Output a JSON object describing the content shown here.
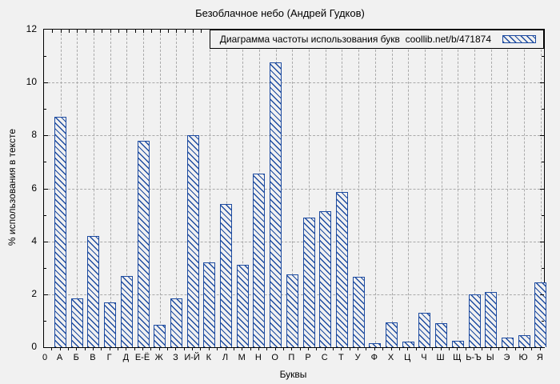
{
  "figure": {
    "background_color": "#f1f1f1",
    "frame_color": "#000000",
    "grid_color": "#aaaaaa",
    "bar_color": "#1d4ba0"
  },
  "chart_data": {
    "type": "bar",
    "title": "Безоблачное небо (Андрей Гудков)",
    "legend_label": "Диаграмма частоты использования букв  coollib.net/b/471874",
    "legend_position": "top-right",
    "xlabel": "Буквы",
    "ylabel": "% использования в тексте",
    "x_origin_label": "0",
    "ylim": [
      0,
      12
    ],
    "yticks": [
      0,
      2,
      4,
      6,
      8,
      10,
      12
    ],
    "grid": true,
    "hatch_style": "diagonal-backslash",
    "categories": [
      "А",
      "Б",
      "В",
      "Г",
      "Д",
      "Е-Ё",
      "Ж",
      "З",
      "И-Й",
      "К",
      "Л",
      "М",
      "Н",
      "О",
      "П",
      "Р",
      "С",
      "Т",
      "У",
      "Ф",
      "Х",
      "Ц",
      "Ч",
      "Ш",
      "Щ",
      "Ь-Ъ",
      "Ы",
      "Э",
      "Ю",
      "Я"
    ],
    "values": [
      8.7,
      1.85,
      4.2,
      1.7,
      2.7,
      7.8,
      0.85,
      1.85,
      8.0,
      3.2,
      5.4,
      3.1,
      6.55,
      10.75,
      2.75,
      4.9,
      5.15,
      5.85,
      2.65,
      0.15,
      0.95,
      0.2,
      1.3,
      0.9,
      0.25,
      2.0,
      2.1,
      0.35,
      0.45,
      2.45
    ]
  }
}
